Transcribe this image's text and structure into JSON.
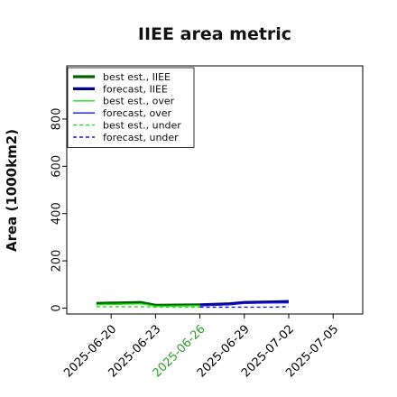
{
  "chart_data": {
    "type": "line",
    "title": "IIEE area metric",
    "ylabel": "Area (1000km2)",
    "xlabel": "",
    "ylim": [
      -25,
      1025
    ],
    "yticks": [
      0,
      200,
      400,
      600,
      800
    ],
    "xlim": [
      "2025-06-17",
      "2025-07-07"
    ],
    "xticks": [
      {
        "label": "2025-06-20",
        "color": "#000000"
      },
      {
        "label": "2025-06-23",
        "color": "#000000"
      },
      {
        "label": "2025-06-26",
        "color": "#2ca02c"
      },
      {
        "label": "2025-06-29",
        "color": "#000000"
      },
      {
        "label": "2025-07-02",
        "color": "#000000"
      },
      {
        "label": "2025-07-05",
        "color": "#000000"
      }
    ],
    "grid": false,
    "legend_position": "top-left",
    "series": [
      {
        "name": "best est., IIEE",
        "color": "#006400",
        "style": "solid",
        "width": 3.2,
        "x": [
          "2025-06-19",
          "2025-06-22",
          "2025-06-23",
          "2025-06-26"
        ],
        "values": [
          20,
          24,
          12,
          14
        ]
      },
      {
        "name": "forecast, IIEE",
        "color": "#00008b",
        "style": "solid",
        "width": 3.2,
        "x": [
          "2025-06-26",
          "2025-06-28",
          "2025-06-29",
          "2025-07-01",
          "2025-07-02"
        ],
        "values": [
          14,
          18,
          24,
          26,
          28
        ]
      },
      {
        "name": "best est., over",
        "color": "#22dd22",
        "style": "solid",
        "width": 1.4,
        "x": [
          "2025-06-19",
          "2025-06-22",
          "2025-06-23",
          "2025-06-26"
        ],
        "values": [
          14,
          18,
          8,
          10
        ]
      },
      {
        "name": "forecast, over",
        "color": "#1515ee",
        "style": "solid",
        "width": 1.4,
        "x": [
          "2025-06-26",
          "2025-06-28",
          "2025-06-29",
          "2025-07-01",
          "2025-07-02"
        ],
        "values": [
          10,
          14,
          20,
          22,
          22
        ]
      },
      {
        "name": "best est., under",
        "color": "#22dd22",
        "style": "dashed",
        "width": 1.4,
        "x": [
          "2025-06-19",
          "2025-06-22",
          "2025-06-23",
          "2025-06-26"
        ],
        "values": [
          6,
          6,
          4,
          4
        ]
      },
      {
        "name": "forecast, under",
        "color": "#1515ee",
        "style": "dashed",
        "width": 1.4,
        "x": [
          "2025-06-26",
          "2025-06-28",
          "2025-06-29",
          "2025-07-01",
          "2025-07-02"
        ],
        "values": [
          4,
          4,
          4,
          4,
          6
        ]
      }
    ]
  }
}
